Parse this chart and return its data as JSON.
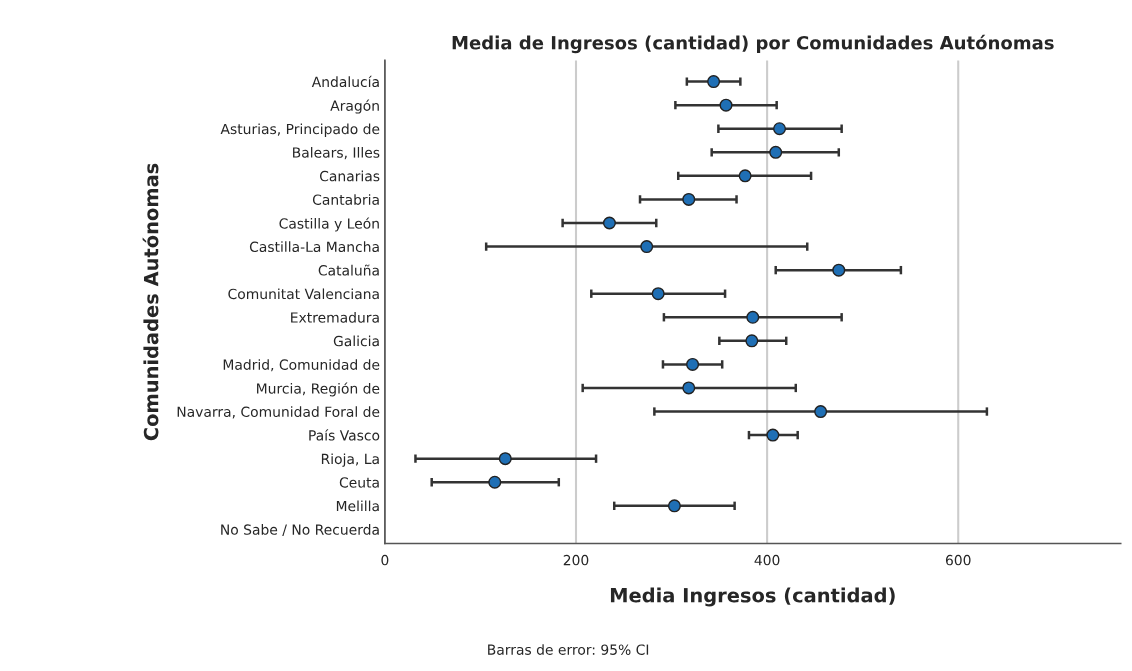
{
  "chart_data": {
    "type": "scatter",
    "orientation": "horizontal",
    "title": "Media de Ingresos (cantidad) por Comunidades Autónomas",
    "xlabel": "Media Ingresos (cantidad)",
    "ylabel": "Comunidades Autónomas",
    "categories": [
      "Andalucía",
      "Aragón",
      "Asturias, Principado de",
      "Balears, Illes",
      "Canarias",
      "Cantabria",
      "Castilla y León",
      "Castilla-La Mancha",
      "Cataluña",
      "Comunitat Valenciana",
      "Extremadura",
      "Galicia",
      "Madrid, Comunidad de",
      "Murcia, Región de",
      "Navarra, Comunidad Foral de",
      "País Vasco",
      "Rioja, La",
      "Ceuta",
      "Melilla",
      "No Sabe / No Recuerda"
    ],
    "series": [
      {
        "color": "#1f6fb5",
        "values": [
          344,
          357,
          413,
          409,
          377,
          318,
          235,
          274,
          475,
          286,
          385,
          384,
          322,
          318,
          456,
          406,
          126,
          115,
          303,
          null
        ],
        "errors": [
          [
            316,
            372
          ],
          [
            304,
            410
          ],
          [
            349,
            478
          ],
          [
            342,
            475
          ],
          [
            307,
            446
          ],
          [
            267,
            368
          ],
          [
            186,
            284
          ],
          [
            106,
            442
          ],
          [
            409,
            540
          ],
          [
            216,
            356
          ],
          [
            292,
            478
          ],
          [
            350,
            420
          ],
          [
            291,
            353
          ],
          [
            207,
            430
          ],
          [
            282,
            630
          ],
          [
            381,
            432
          ],
          [
            32,
            221
          ],
          [
            49,
            182
          ],
          [
            240,
            366
          ],
          null
        ]
      }
    ],
    "xlim": [
      0,
      770
    ],
    "xticks": [
      0,
      200,
      400,
      600
    ],
    "grid": "x",
    "marker": "circle",
    "legend": false,
    "annotations": [
      "Barras de error: 95% CI"
    ]
  }
}
